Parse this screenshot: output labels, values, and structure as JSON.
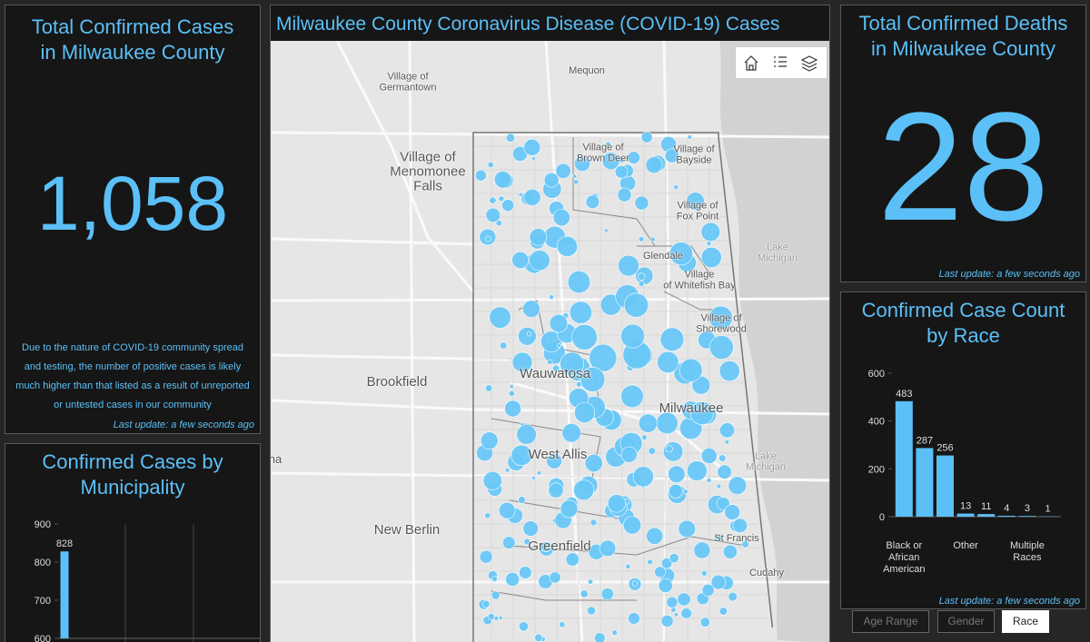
{
  "header": {
    "title": "Milwaukee County Coronavirus Disease (COVID-19) Cases"
  },
  "cases_panel": {
    "title": "Total Confirmed Cases\nin Milwaukee County",
    "value": "1,058",
    "note": "Due to the nature of COVID-19 community spread and testing, the number of positive cases is likely much higher than that listed as a result of unreported or untested cases in our community",
    "last_update": "Last update: a few seconds ago"
  },
  "deaths_panel": {
    "title": "Total Confirmed Deaths\nin Milwaukee County",
    "value": 28,
    "last_update": "Last update: a few seconds ago"
  },
  "map": {
    "labels": [
      "Village of\nGermantown",
      "Mequon",
      "Village of\nMenomonee\nFalls",
      "Village of\nBrown Deer",
      "Village of\nBayside",
      "Village of\nFox Point",
      "Lake Michigan",
      "Glendale",
      "Village\nof Whitefish Bay",
      "Village of\nShorewood",
      "Brookfield",
      "Wauwatosa",
      "Milwaukee",
      "Lake Michigan",
      "West Allis",
      "na",
      "New Berlin",
      "St Francis",
      "Greenfield",
      "Cudahy"
    ]
  },
  "race_footer": {
    "last_update": "Last update: a few seconds ago"
  },
  "tabs": [
    "Age Range",
    "Gender",
    "Race"
  ],
  "chart_data": [
    {
      "type": "bar",
      "title": "Confirmed Cases by\nMunicipality",
      "categories": [
        null
      ],
      "values": [
        828
      ],
      "color": "#5bc0f8",
      "ylim": [
        600,
        900
      ],
      "yticks": [
        600,
        700,
        800,
        900
      ],
      "grid": false
    },
    {
      "type": "bar",
      "title": "Confirmed Case Count\nby Race",
      "categories": [
        "Black or African American",
        null,
        null,
        "Other",
        null,
        null,
        "Multiple Races",
        null
      ],
      "values": [
        483,
        287,
        256,
        13,
        11,
        4,
        3,
        1
      ],
      "color": "#5bc0f8",
      "ylim": [
        0,
        600
      ],
      "yticks": [
        0,
        200,
        400,
        600
      ],
      "grid": false
    }
  ]
}
